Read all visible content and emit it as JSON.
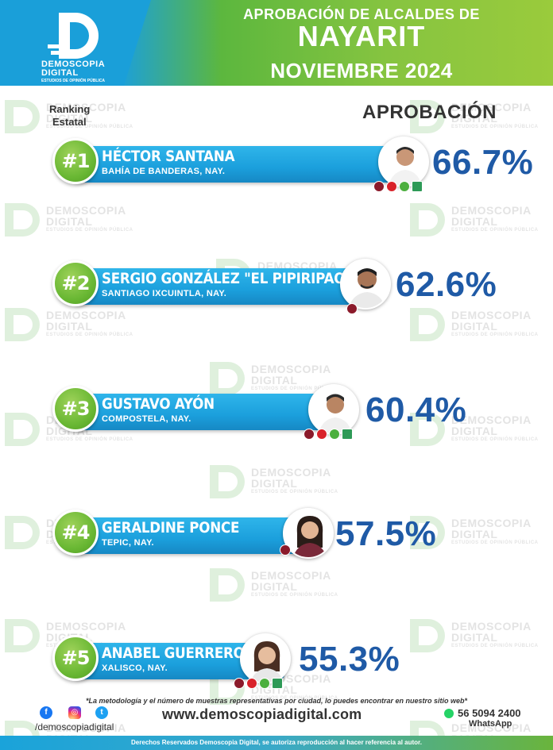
{
  "header": {
    "logo_line1": "DEMOSCOPIA",
    "logo_line2": "DIGITAL",
    "logo_line3": "ESTUDIOS DE OPINIÓN PÚBLICA",
    "title_line1": "APROBACIÓN DE ALCALDES DE",
    "title_line2": "NAYARIT",
    "title_line3": "NOVIEMBRE 2024"
  },
  "labels": {
    "ranking_line1": "Ranking",
    "ranking_line2": "Estatal",
    "approval": "APROBACIÓN"
  },
  "watermark": {
    "line1": "DEMOSCOPIA",
    "line2": "DIGITAL",
    "line3": "ESTUDIOS DE OPINIÓN PÚBLICA"
  },
  "rankings": [
    {
      "rank": "#1",
      "name": "HÉCTOR SANTANA",
      "city": "BAHÍA DE BANDERAS, NAY.",
      "approval": "66.7%",
      "parties": [
        "morena",
        "pt",
        "pv",
        "fxm"
      ]
    },
    {
      "rank": "#2",
      "name": "SERGIO GONZÁLEZ \"EL PIPIRIPAO\"",
      "city": "SANTIAGO IXCUINTLA, NAY.",
      "approval": "62.6%",
      "parties": [
        "morena"
      ]
    },
    {
      "rank": "#3",
      "name": "GUSTAVO AYÓN",
      "city": "COMPOSTELA, NAY.",
      "approval": "60.4%",
      "parties": [
        "morena",
        "pt",
        "pv",
        "fxm"
      ]
    },
    {
      "rank": "#4",
      "name": "GERALDINE PONCE",
      "city": "TEPIC, NAY.",
      "approval": "57.5%",
      "parties": [
        "morena"
      ]
    },
    {
      "rank": "#5",
      "name": "ANABEL GUERRERO",
      "city": "XALISCO, NAY.",
      "approval": "55.3%",
      "parties": [
        "morena",
        "pt",
        "pv",
        "fxm"
      ]
    }
  ],
  "footer": {
    "note": "*La metodología y el número de muestras representativas por ciudad, lo puedes encontrar en nuestro sitio web*",
    "handle": "/demoscopiadigital",
    "website": "www.demoscopiadigital.com",
    "phone": "56 5094 2400",
    "whatsapp_label": "WhatsApp",
    "rights": "Derechos Reservados Demoscopia Digital, se autoriza reproducción al hacer referencia al autor."
  },
  "colors": {
    "accent_blue": "#1b9fdc",
    "accent_green": "#6ab834",
    "percent_blue": "#1f5aa6"
  }
}
